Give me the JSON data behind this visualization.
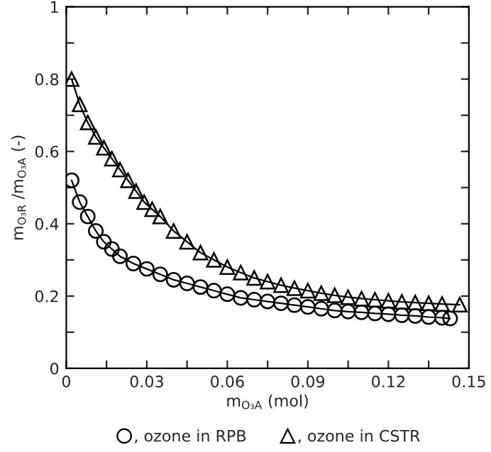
{
  "chart_data": {
    "type": "line",
    "xlabel": "m$_{O₃A}$ (mol)",
    "ylabel": "m$_{O₃R}$ /m$_{O₃A}$ (-)",
    "xlim": [
      0,
      0.15
    ],
    "ylim": [
      0,
      1
    ],
    "xticks": [
      0,
      {
        "value": 0.015,
        "label": null
      },
      0.03,
      {
        "value": 0.045,
        "label": null
      },
      0.06,
      {
        "value": 0.075,
        "label": null
      },
      0.09,
      {
        "value": 0.105,
        "label": null
      },
      0.12,
      {
        "value": 0.135,
        "label": null
      },
      0.15
    ],
    "yticks": [
      0,
      {
        "value": 0.1,
        "label": null
      },
      0.2,
      {
        "value": 0.3,
        "label": null
      },
      0.4,
      {
        "value": 0.5,
        "label": null
      },
      0.6,
      {
        "value": 0.7,
        "label": null
      },
      0.8,
      {
        "value": 0.9,
        "label": null
      },
      1
    ],
    "grid": false,
    "legend": "bottom",
    "series": [
      {
        "name": ", ozone in RPB",
        "color": "#000000",
        "marker": "circle",
        "x": [
          0.002,
          0.005,
          0.008,
          0.011,
          0.014,
          0.017,
          0.02,
          0.025,
          0.03,
          0.035,
          0.04,
          0.045,
          0.05,
          0.055,
          0.06,
          0.065,
          0.07,
          0.075,
          0.08,
          0.085,
          0.09,
          0.095,
          0.1,
          0.105,
          0.11,
          0.115,
          0.12,
          0.125,
          0.13,
          0.135,
          0.14,
          0.143
        ],
        "values": [
          0.52,
          0.46,
          0.42,
          0.38,
          0.35,
          0.33,
          0.31,
          0.29,
          0.275,
          0.26,
          0.245,
          0.235,
          0.225,
          0.215,
          0.205,
          0.195,
          0.19,
          0.185,
          0.18,
          0.175,
          0.17,
          0.165,
          0.16,
          0.157,
          0.155,
          0.152,
          0.15,
          0.147,
          0.145,
          0.142,
          0.14,
          0.138
        ]
      },
      {
        "name": ", ozone in CSTR",
        "color": "#000000",
        "marker": "triangle",
        "x": [
          0.002,
          0.005,
          0.008,
          0.011,
          0.014,
          0.017,
          0.02,
          0.023,
          0.026,
          0.029,
          0.032,
          0.035,
          0.04,
          0.045,
          0.05,
          0.055,
          0.06,
          0.065,
          0.07,
          0.075,
          0.08,
          0.085,
          0.09,
          0.095,
          0.1,
          0.105,
          0.11,
          0.115,
          0.12,
          0.125,
          0.13,
          0.135,
          0.14,
          0.1466
        ],
        "values": [
          0.8,
          0.73,
          0.68,
          0.64,
          0.61,
          0.58,
          0.55,
          0.52,
          0.49,
          0.46,
          0.44,
          0.42,
          0.38,
          0.35,
          0.32,
          0.3,
          0.28,
          0.265,
          0.25,
          0.24,
          0.23,
          0.222,
          0.215,
          0.208,
          0.202,
          0.197,
          0.193,
          0.19,
          0.187,
          0.184,
          0.182,
          0.18,
          0.178,
          0.176
        ]
      }
    ]
  }
}
